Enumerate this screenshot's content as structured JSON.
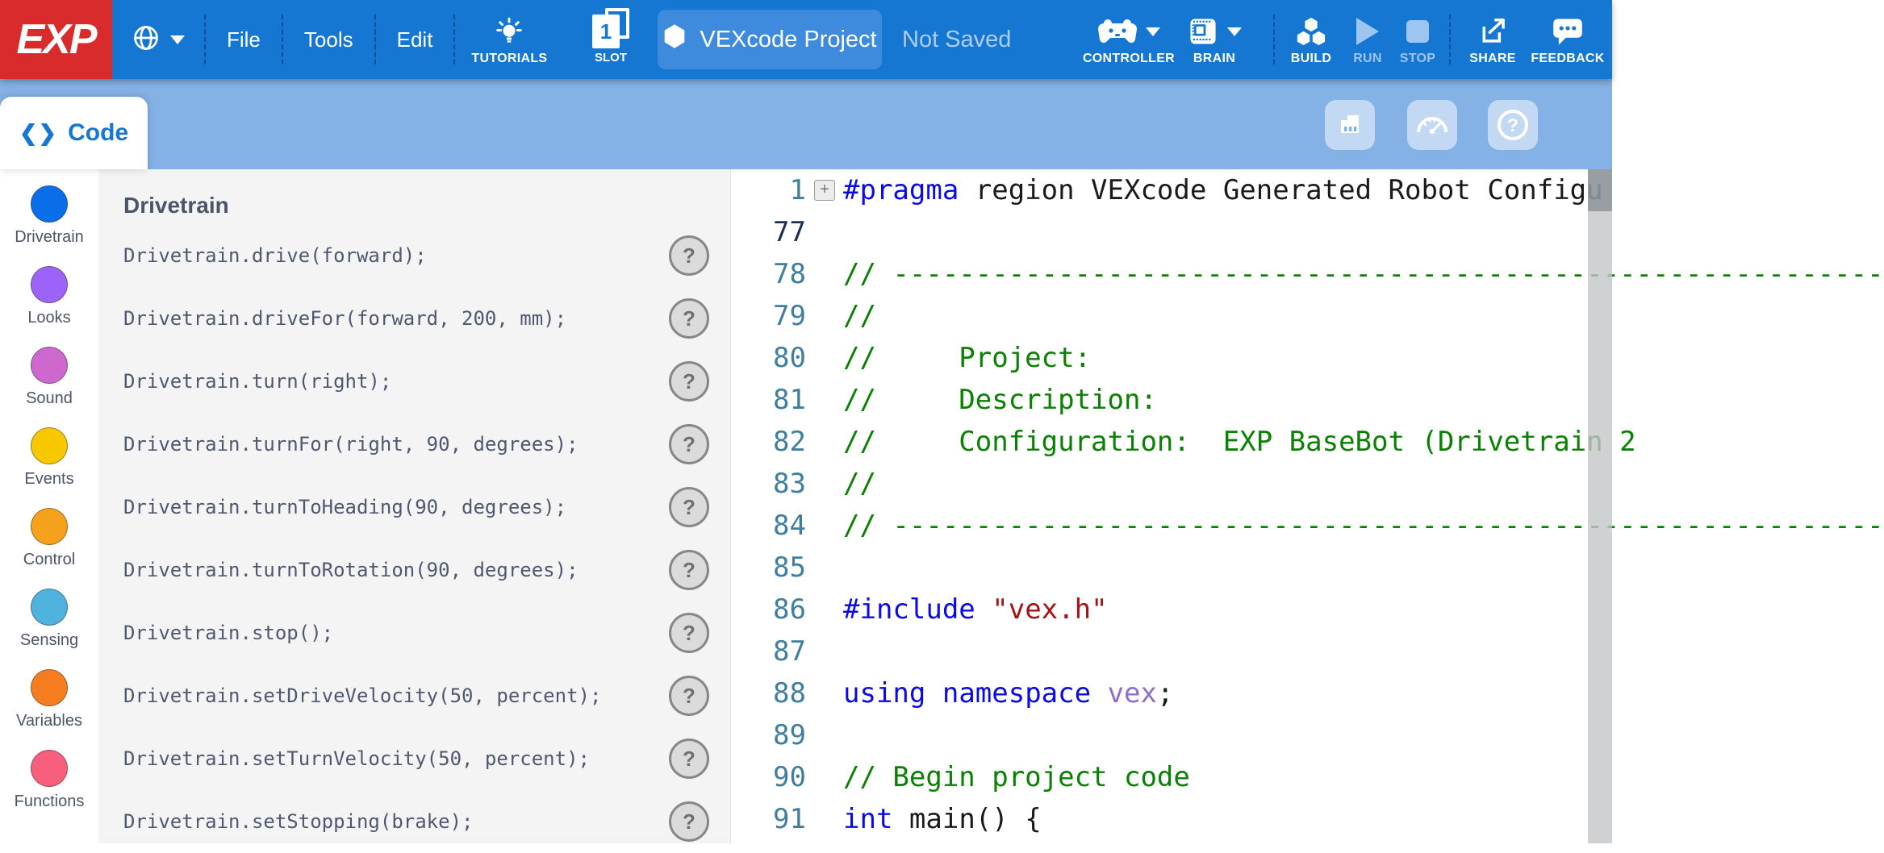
{
  "colors": {
    "topbar_blue": "#1577D2",
    "logo_red": "#D92B2B",
    "toolbar_light_blue": "#84B1E6",
    "accent_blue": "#1577D2",
    "comment_green": "#0A8000",
    "keyword_blue": "#0A0AE6",
    "string_red": "#A31515"
  },
  "topbar": {
    "logo": "EXP",
    "menus": [
      {
        "label": "File"
      },
      {
        "label": "Tools"
      },
      {
        "label": "Edit"
      }
    ],
    "tutorials_label": "TUTORIALS",
    "slot": {
      "number": "1",
      "label": "SLOT"
    },
    "project": {
      "name": "VEXcode Project"
    },
    "status": "Not Saved",
    "controller_label": "CONTROLLER",
    "brain_label": "BRAIN",
    "build_label": "BUILD",
    "run_label": "RUN",
    "stop_label": "STOP",
    "share_label": "SHARE",
    "feedback_label": "FEEDBACK"
  },
  "toolbar": {
    "code_tab_label": "Code",
    "help_glyph": "?"
  },
  "sidebar": {
    "items": [
      {
        "label": "Drivetrain",
        "color": "#0A6EEB"
      },
      {
        "label": "Looks",
        "color": "#9B63F8"
      },
      {
        "label": "Sound",
        "color": "#CE68CE"
      },
      {
        "label": "Events",
        "color": "#F7C700"
      },
      {
        "label": "Control",
        "color": "#F5A11C"
      },
      {
        "label": "Sensing",
        "color": "#4FB3DE"
      },
      {
        "label": "Variables",
        "color": "#F57D20"
      },
      {
        "label": "Functions",
        "color": "#F85F7C"
      }
    ]
  },
  "commands": {
    "header": "Drivetrain",
    "help_glyph": "?",
    "items": [
      "Drivetrain.drive(forward);",
      "Drivetrain.driveFor(forward, 200, mm);",
      "Drivetrain.turn(right);",
      "Drivetrain.turnFor(right, 90, degrees);",
      "Drivetrain.turnToHeading(90, degrees);",
      "Drivetrain.turnToRotation(90, degrees);",
      "Drivetrain.stop();",
      "Drivetrain.setDriveVelocity(50, percent);",
      "Drivetrain.setTurnVelocity(50, percent);",
      "Drivetrain.setStopping(brake);"
    ]
  },
  "editor": {
    "lines": [
      {
        "num": "1",
        "fold": true,
        "tokens": [
          {
            "c": "kw",
            "t": "#pragma"
          },
          {
            "c": "pl",
            "t": " region VEXcode Generated Robot Configu"
          }
        ]
      },
      {
        "num": "77",
        "active": true,
        "tokens": []
      },
      {
        "num": "78",
        "tokens": [
          {
            "c": "cm",
            "t": "// ------------------------------------------------------------"
          }
        ]
      },
      {
        "num": "79",
        "tokens": [
          {
            "c": "cm",
            "t": "//"
          }
        ]
      },
      {
        "num": "80",
        "tokens": [
          {
            "c": "cm",
            "t": "//     Project:"
          }
        ]
      },
      {
        "num": "81",
        "tokens": [
          {
            "c": "cm",
            "t": "//     Description:"
          }
        ]
      },
      {
        "num": "82",
        "tokens": [
          {
            "c": "cm",
            "t": "//     Configuration:  EXP BaseBot (Drivetrain 2"
          }
        ]
      },
      {
        "num": "83",
        "tokens": [
          {
            "c": "cm",
            "t": "//"
          }
        ]
      },
      {
        "num": "84",
        "tokens": [
          {
            "c": "cm",
            "t": "// ------------------------------------------------------------"
          }
        ]
      },
      {
        "num": "85",
        "tokens": []
      },
      {
        "num": "86",
        "tokens": [
          {
            "c": "kw",
            "t": "#include"
          },
          {
            "c": "pl",
            "t": " "
          },
          {
            "c": "str",
            "t": "\"vex.h\""
          }
        ]
      },
      {
        "num": "87",
        "tokens": []
      },
      {
        "num": "88",
        "tokens": [
          {
            "c": "kw",
            "t": "using"
          },
          {
            "c": "pl",
            "t": " "
          },
          {
            "c": "kw",
            "t": "namespace"
          },
          {
            "c": "pl",
            "t": " "
          },
          {
            "c": "ns",
            "t": "vex"
          },
          {
            "c": "pl",
            "t": ";"
          }
        ]
      },
      {
        "num": "89",
        "tokens": []
      },
      {
        "num": "90",
        "tokens": [
          {
            "c": "cm",
            "t": "// Begin project code"
          }
        ]
      },
      {
        "num": "91",
        "tokens": [
          {
            "c": "kw",
            "t": "int"
          },
          {
            "c": "pl",
            "t": " "
          },
          {
            "c": "pl",
            "t": "main() {"
          }
        ]
      }
    ]
  }
}
